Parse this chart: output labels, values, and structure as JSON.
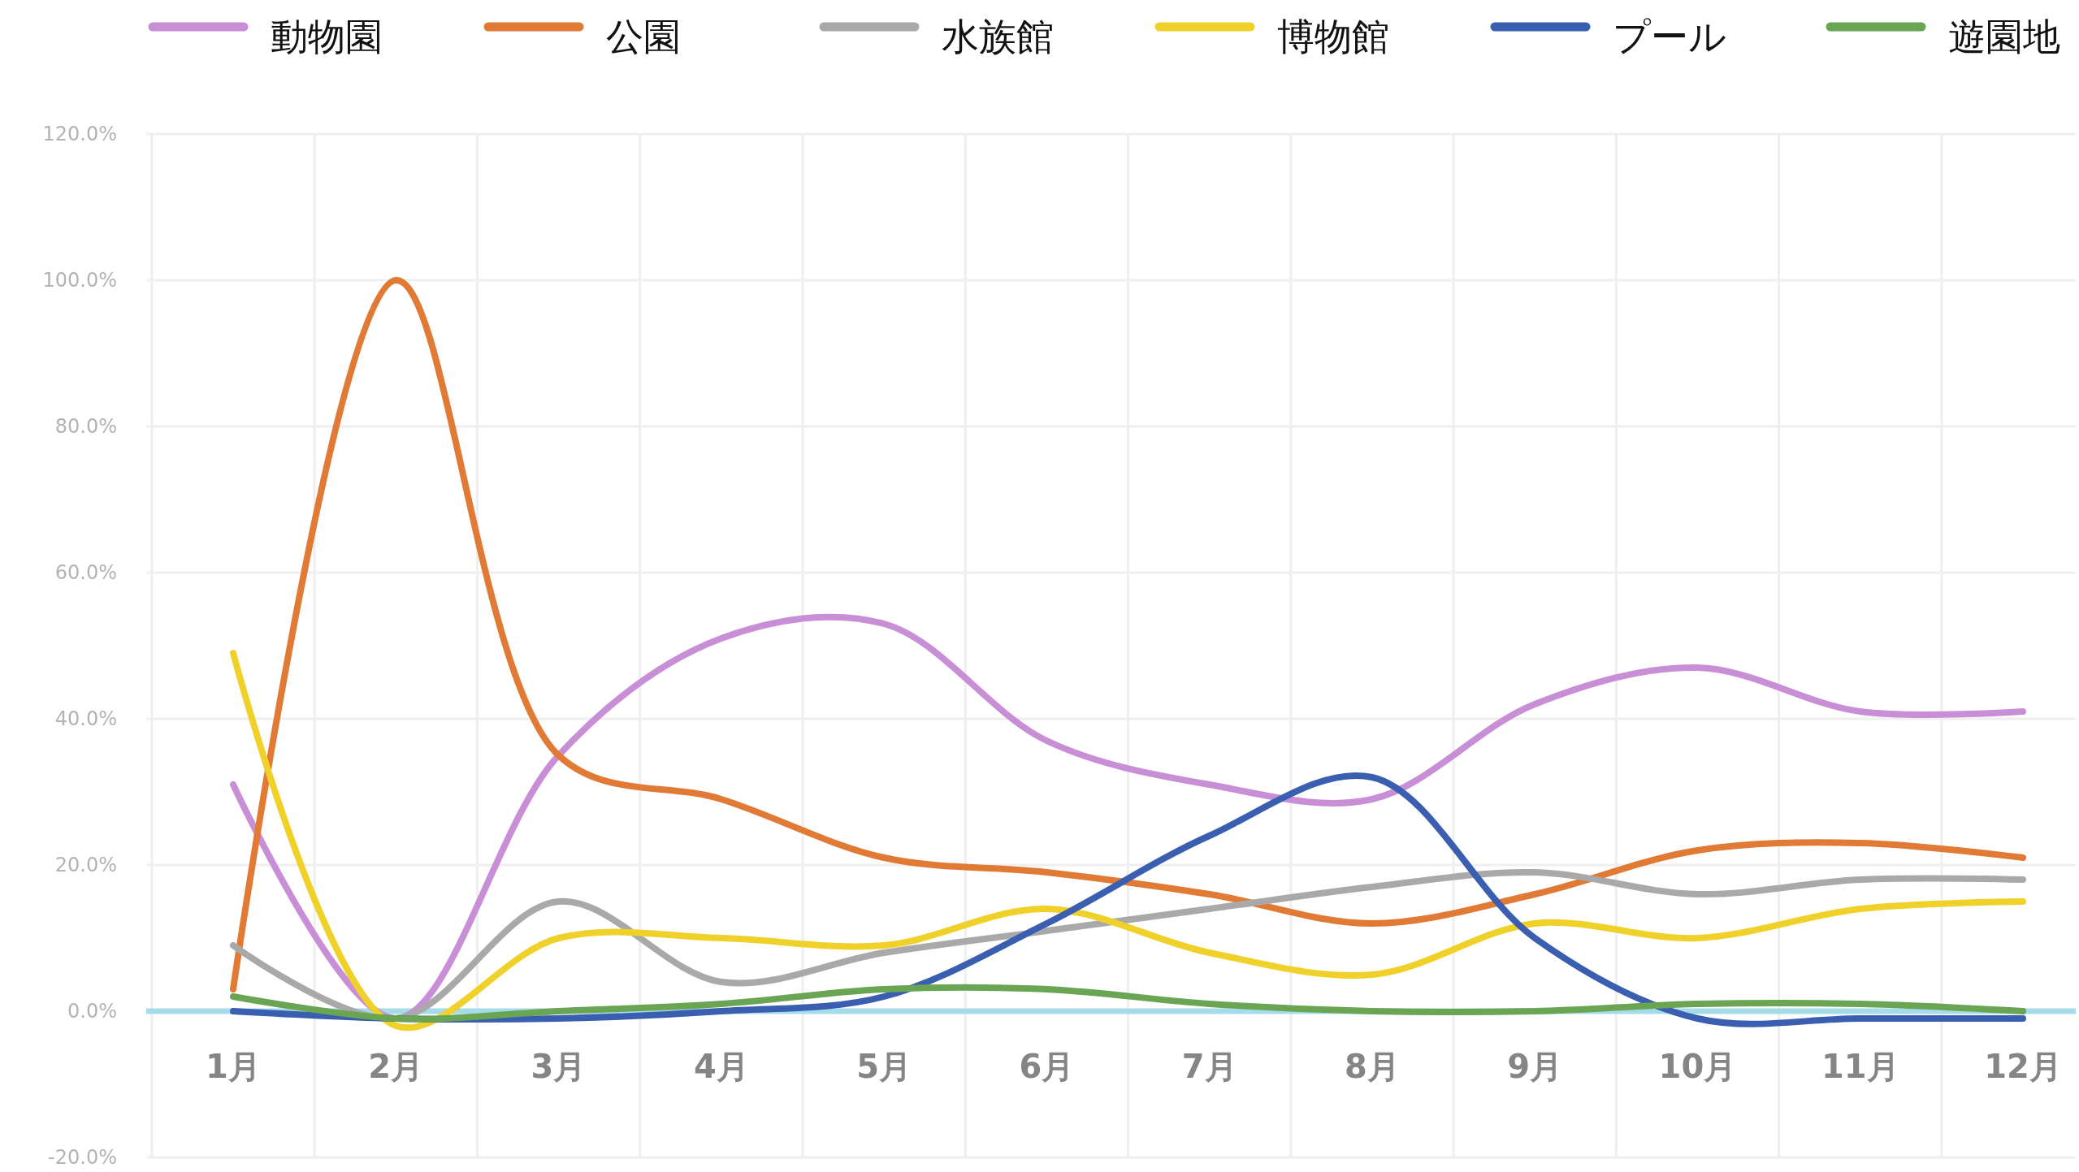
{
  "chart_data": {
    "type": "line",
    "categories": [
      "1月",
      "2月",
      "3月",
      "4月",
      "5月",
      "6月",
      "7月",
      "8月",
      "9月",
      "10月",
      "11月",
      "12月"
    ],
    "series": [
      {
        "name": "動物園",
        "color": "#c98fd6",
        "values": [
          31,
          -1,
          35,
          51,
          53,
          37,
          31,
          29,
          42,
          47,
          41,
          41
        ]
      },
      {
        "name": "公園",
        "color": "#e07a35",
        "values": [
          3,
          100,
          35,
          29,
          21,
          19,
          16,
          12,
          16,
          22,
          23,
          21
        ]
      },
      {
        "name": "水族館",
        "color": "#a9a9a9",
        "values": [
          9,
          -1,
          15,
          4,
          8,
          11,
          14,
          17,
          19,
          16,
          18,
          18
        ]
      },
      {
        "name": "博物館",
        "color": "#f0d12a",
        "values": [
          49,
          -2,
          10,
          10,
          9,
          14,
          8,
          5,
          12,
          10,
          14,
          15
        ]
      },
      {
        "name": "プール",
        "color": "#3a5fb0",
        "values": [
          0,
          -1,
          -1,
          0,
          2,
          12,
          24,
          32,
          10,
          -1,
          -1,
          -1
        ]
      },
      {
        "name": "遊園地",
        "color": "#6aa553",
        "values": [
          2,
          -1,
          0,
          1,
          3,
          3,
          1,
          0,
          0,
          1,
          1,
          0
        ]
      }
    ],
    "ylim": [
      -20,
      120
    ],
    "yticks": [
      {
        "value": -20,
        "label": "-20.0%"
      },
      {
        "value": 0,
        "label": "0.0%"
      },
      {
        "value": 20,
        "label": "20.0%"
      },
      {
        "value": 40,
        "label": "40.0%"
      },
      {
        "value": 60,
        "label": "60.0%"
      },
      {
        "value": 80,
        "label": "80.0%"
      },
      {
        "value": 100,
        "label": "100.0%"
      },
      {
        "value": 120,
        "label": "120.0%"
      }
    ],
    "grid": true,
    "legend": "top"
  }
}
